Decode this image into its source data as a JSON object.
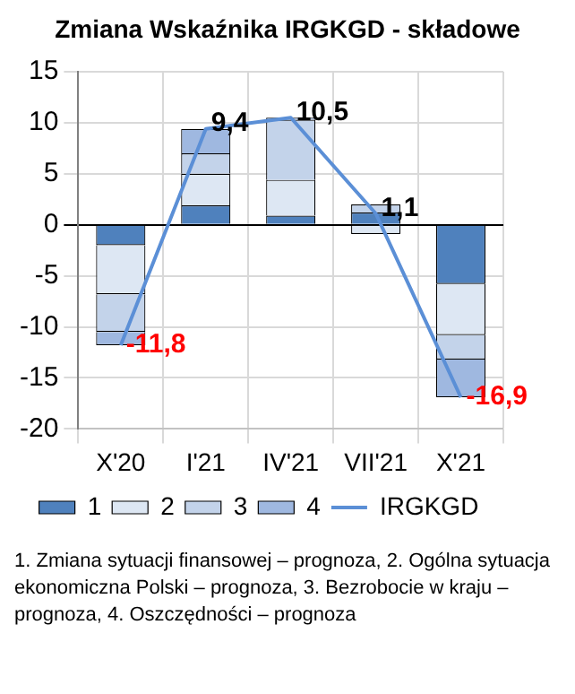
{
  "chart_data": {
    "type": "bar",
    "title": "Zmiana Wskaźnika IRGKGD - składowe",
    "categories": [
      "X'20",
      "I'21",
      "IV'21",
      "VII'21",
      "X'21"
    ],
    "stacked": true,
    "series": [
      {
        "name": "1",
        "color": "#4f81bd",
        "values": [
          -2.0,
          1.9,
          0.9,
          1.2,
          -5.8
        ]
      },
      {
        "name": "2",
        "color": "#dde7f3",
        "values": [
          -4.8,
          3.1,
          3.5,
          -0.9,
          -5.0
        ]
      },
      {
        "name": "3",
        "color": "#c3d3ea",
        "values": [
          -3.7,
          2.0,
          5.9,
          0.8,
          -2.4
        ]
      },
      {
        "name": "4",
        "color": "#9fb8e0",
        "values": [
          -1.3,
          2.4,
          0.2,
          0,
          -3.7
        ]
      },
      {
        "name": "IRGKGD",
        "type": "line",
        "color": "#5b8fd6",
        "values": [
          -11.8,
          9.4,
          10.5,
          1.1,
          -16.9
        ],
        "value_labels": [
          "-11,8",
          "9,4",
          "10,5",
          "1,1",
          "-16,9"
        ]
      }
    ],
    "ylim": [
      -20,
      15
    ],
    "yticks": [
      -20,
      -15,
      -10,
      -5,
      0,
      5,
      10,
      15
    ],
    "grid": true,
    "legend": "bottom",
    "marker": "none",
    "annotations": [
      "1. Zmiana sytuacji finansowej – prognoza, 2. Ogólna sytuacja ekonomiczna Polski – prognoza, 3. Bezrobocie w kraju – prognoza, 4. Oszczędności – prognoza"
    ]
  }
}
